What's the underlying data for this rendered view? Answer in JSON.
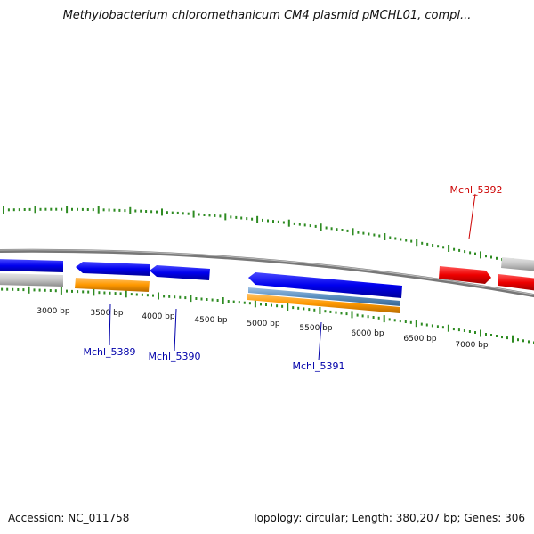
{
  "title": "Methylobacterium chloromethanicum CM4 plasmid pMCHL01, compl...",
  "footer": {
    "accession": "Accession: NC_011758",
    "summary": "Topology: circular; Length: 380,207 bp; Genes: 306"
  },
  "scale_labels": [
    "3000 bp",
    "3500 bp",
    "4000 bp",
    "4500 bp",
    "5000 bp",
    "5500 bp",
    "6000 bp",
    "6500 bp",
    "7000 bp"
  ],
  "gene_labels": [
    {
      "text": "Mchl_5389",
      "color": "#0000aa"
    },
    {
      "text": "Mchl_5390",
      "color": "#0000aa"
    },
    {
      "text": "Mchl_5391",
      "color": "#0000aa"
    },
    {
      "text": "Mchl_5392",
      "color": "#cc0000"
    }
  ],
  "colors": {
    "forward_gene": "#0000ee",
    "highlight_gene": "#ee0000",
    "orange_feature": "#ff9900",
    "steel_feature": "#5a8fc0",
    "grey_feature": "#bfbfbf",
    "tick": "#2e8b22",
    "backbone": "#777777"
  }
}
